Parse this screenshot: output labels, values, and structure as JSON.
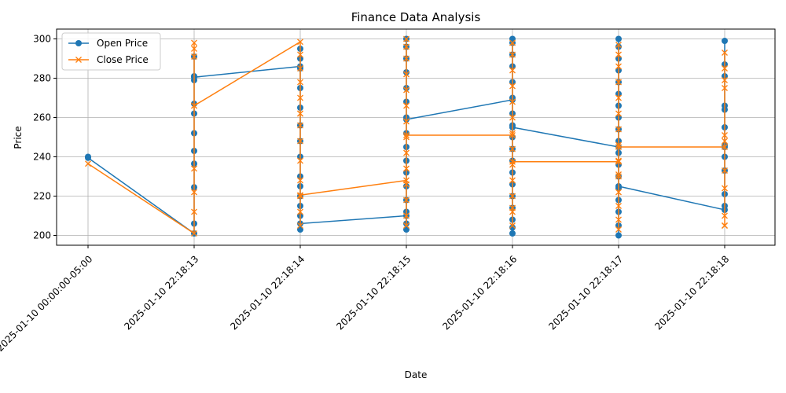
{
  "chart_data": {
    "type": "line",
    "title": "Finance Data Analysis",
    "xlabel": "Date",
    "ylabel": "Price",
    "ylim": [
      195,
      305
    ],
    "yticks": [
      200,
      220,
      240,
      260,
      280,
      300
    ],
    "grid": true,
    "legend_position": "upper-left",
    "categories": [
      "2025-01-10 00:00:00-05:00",
      "2025-01-10 22:18:13",
      "2025-01-10 22:18:14",
      "2025-01-10 22:18:15",
      "2025-01-10 22:18:16",
      "2025-01-10 22:18:17",
      "2025-01-10 22:18:18"
    ],
    "series": [
      {
        "name": "Open Price",
        "color": "#1f77b4",
        "marker": "circle",
        "points": [
          [
            240,
            239.5
          ],
          [
            201,
            281,
            206,
            224.5,
            236.5,
            243,
            252,
            262,
            267,
            279,
            291,
            280.5
          ],
          [
            286,
            203,
            210,
            215,
            220,
            225,
            230,
            240,
            248,
            256,
            265,
            275,
            285,
            290,
            295,
            206
          ],
          [
            210,
            203,
            206,
            212,
            218,
            225,
            232,
            238,
            245,
            252,
            260,
            268,
            275,
            283,
            290,
            296,
            300,
            259
          ],
          [
            269,
            201,
            204,
            208,
            214,
            220,
            226,
            232,
            238,
            244,
            250,
            256,
            262,
            270,
            278,
            286,
            292,
            298,
            300,
            255
          ],
          [
            245,
            200,
            205,
            212,
            218,
            224,
            230,
            236,
            242,
            248,
            254,
            260,
            266,
            272,
            278,
            284,
            290,
            296,
            300,
            225
          ],
          [
            213,
            215,
            221,
            233,
            240,
            246,
            255,
            264,
            266,
            281,
            287,
            299,
            245
          ]
        ]
      },
      {
        "name": "Close Price",
        "color": "#ff7f0e",
        "marker": "x",
        "points": [
          [
            236.5
          ],
          [
            201,
            212,
            222,
            234,
            266,
            291,
            295,
            298,
            266
          ],
          [
            298.5,
            205,
            212,
            220,
            228,
            238,
            248,
            256,
            262,
            270,
            278,
            285,
            292,
            262,
            220.5
          ],
          [
            228,
            205,
            210,
            218,
            226,
            234,
            242,
            250,
            258,
            266,
            274,
            282,
            290,
            296,
            300,
            251
          ],
          [
            251,
            205,
            212,
            220,
            228,
            236,
            244,
            252,
            260,
            268,
            276,
            284,
            292,
            298,
            214,
            237.5
          ],
          [
            237.5,
            203,
            208,
            215,
            222,
            230,
            238,
            246,
            254,
            262,
            270,
            278,
            286,
            292,
            297,
            231,
            245
          ],
          [
            245,
            205,
            210,
            224,
            233,
            248,
            251,
            275,
            279,
            285,
            293,
            205
          ]
        ]
      }
    ]
  }
}
